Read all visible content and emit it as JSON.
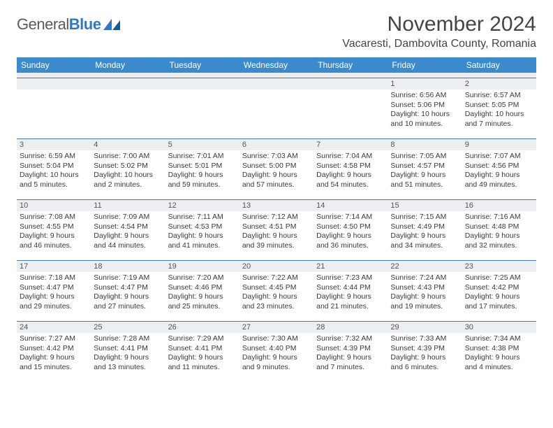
{
  "logo": {
    "text_gray": "General",
    "text_blue": "Blue"
  },
  "header": {
    "title": "November 2024",
    "location": "Vacaresti, Dambovita County, Romania"
  },
  "colors": {
    "header_blue": "#3b8acb",
    "rule_blue": "#4a7aa8",
    "row_gray": "#eceff2",
    "text": "#333333"
  },
  "weekdays": [
    "Sunday",
    "Monday",
    "Tuesday",
    "Wednesday",
    "Thursday",
    "Friday",
    "Saturday"
  ],
  "weeks": [
    [
      {
        "n": "",
        "sr": "",
        "ss": "",
        "dl": ""
      },
      {
        "n": "",
        "sr": "",
        "ss": "",
        "dl": ""
      },
      {
        "n": "",
        "sr": "",
        "ss": "",
        "dl": ""
      },
      {
        "n": "",
        "sr": "",
        "ss": "",
        "dl": ""
      },
      {
        "n": "",
        "sr": "",
        "ss": "",
        "dl": ""
      },
      {
        "n": "1",
        "sr": "Sunrise: 6:56 AM",
        "ss": "Sunset: 5:06 PM",
        "dl": "Daylight: 10 hours and 10 minutes."
      },
      {
        "n": "2",
        "sr": "Sunrise: 6:57 AM",
        "ss": "Sunset: 5:05 PM",
        "dl": "Daylight: 10 hours and 7 minutes."
      }
    ],
    [
      {
        "n": "3",
        "sr": "Sunrise: 6:59 AM",
        "ss": "Sunset: 5:04 PM",
        "dl": "Daylight: 10 hours and 5 minutes."
      },
      {
        "n": "4",
        "sr": "Sunrise: 7:00 AM",
        "ss": "Sunset: 5:02 PM",
        "dl": "Daylight: 10 hours and 2 minutes."
      },
      {
        "n": "5",
        "sr": "Sunrise: 7:01 AM",
        "ss": "Sunset: 5:01 PM",
        "dl": "Daylight: 9 hours and 59 minutes."
      },
      {
        "n": "6",
        "sr": "Sunrise: 7:03 AM",
        "ss": "Sunset: 5:00 PM",
        "dl": "Daylight: 9 hours and 57 minutes."
      },
      {
        "n": "7",
        "sr": "Sunrise: 7:04 AM",
        "ss": "Sunset: 4:58 PM",
        "dl": "Daylight: 9 hours and 54 minutes."
      },
      {
        "n": "8",
        "sr": "Sunrise: 7:05 AM",
        "ss": "Sunset: 4:57 PM",
        "dl": "Daylight: 9 hours and 51 minutes."
      },
      {
        "n": "9",
        "sr": "Sunrise: 7:07 AM",
        "ss": "Sunset: 4:56 PM",
        "dl": "Daylight: 9 hours and 49 minutes."
      }
    ],
    [
      {
        "n": "10",
        "sr": "Sunrise: 7:08 AM",
        "ss": "Sunset: 4:55 PM",
        "dl": "Daylight: 9 hours and 46 minutes."
      },
      {
        "n": "11",
        "sr": "Sunrise: 7:09 AM",
        "ss": "Sunset: 4:54 PM",
        "dl": "Daylight: 9 hours and 44 minutes."
      },
      {
        "n": "12",
        "sr": "Sunrise: 7:11 AM",
        "ss": "Sunset: 4:53 PM",
        "dl": "Daylight: 9 hours and 41 minutes."
      },
      {
        "n": "13",
        "sr": "Sunrise: 7:12 AM",
        "ss": "Sunset: 4:51 PM",
        "dl": "Daylight: 9 hours and 39 minutes."
      },
      {
        "n": "14",
        "sr": "Sunrise: 7:14 AM",
        "ss": "Sunset: 4:50 PM",
        "dl": "Daylight: 9 hours and 36 minutes."
      },
      {
        "n": "15",
        "sr": "Sunrise: 7:15 AM",
        "ss": "Sunset: 4:49 PM",
        "dl": "Daylight: 9 hours and 34 minutes."
      },
      {
        "n": "16",
        "sr": "Sunrise: 7:16 AM",
        "ss": "Sunset: 4:48 PM",
        "dl": "Daylight: 9 hours and 32 minutes."
      }
    ],
    [
      {
        "n": "17",
        "sr": "Sunrise: 7:18 AM",
        "ss": "Sunset: 4:47 PM",
        "dl": "Daylight: 9 hours and 29 minutes."
      },
      {
        "n": "18",
        "sr": "Sunrise: 7:19 AM",
        "ss": "Sunset: 4:47 PM",
        "dl": "Daylight: 9 hours and 27 minutes."
      },
      {
        "n": "19",
        "sr": "Sunrise: 7:20 AM",
        "ss": "Sunset: 4:46 PM",
        "dl": "Daylight: 9 hours and 25 minutes."
      },
      {
        "n": "20",
        "sr": "Sunrise: 7:22 AM",
        "ss": "Sunset: 4:45 PM",
        "dl": "Daylight: 9 hours and 23 minutes."
      },
      {
        "n": "21",
        "sr": "Sunrise: 7:23 AM",
        "ss": "Sunset: 4:44 PM",
        "dl": "Daylight: 9 hours and 21 minutes."
      },
      {
        "n": "22",
        "sr": "Sunrise: 7:24 AM",
        "ss": "Sunset: 4:43 PM",
        "dl": "Daylight: 9 hours and 19 minutes."
      },
      {
        "n": "23",
        "sr": "Sunrise: 7:25 AM",
        "ss": "Sunset: 4:42 PM",
        "dl": "Daylight: 9 hours and 17 minutes."
      }
    ],
    [
      {
        "n": "24",
        "sr": "Sunrise: 7:27 AM",
        "ss": "Sunset: 4:42 PM",
        "dl": "Daylight: 9 hours and 15 minutes."
      },
      {
        "n": "25",
        "sr": "Sunrise: 7:28 AM",
        "ss": "Sunset: 4:41 PM",
        "dl": "Daylight: 9 hours and 13 minutes."
      },
      {
        "n": "26",
        "sr": "Sunrise: 7:29 AM",
        "ss": "Sunset: 4:41 PM",
        "dl": "Daylight: 9 hours and 11 minutes."
      },
      {
        "n": "27",
        "sr": "Sunrise: 7:30 AM",
        "ss": "Sunset: 4:40 PM",
        "dl": "Daylight: 9 hours and 9 minutes."
      },
      {
        "n": "28",
        "sr": "Sunrise: 7:32 AM",
        "ss": "Sunset: 4:39 PM",
        "dl": "Daylight: 9 hours and 7 minutes."
      },
      {
        "n": "29",
        "sr": "Sunrise: 7:33 AM",
        "ss": "Sunset: 4:39 PM",
        "dl": "Daylight: 9 hours and 6 minutes."
      },
      {
        "n": "30",
        "sr": "Sunrise: 7:34 AM",
        "ss": "Sunset: 4:38 PM",
        "dl": "Daylight: 9 hours and 4 minutes."
      }
    ]
  ]
}
